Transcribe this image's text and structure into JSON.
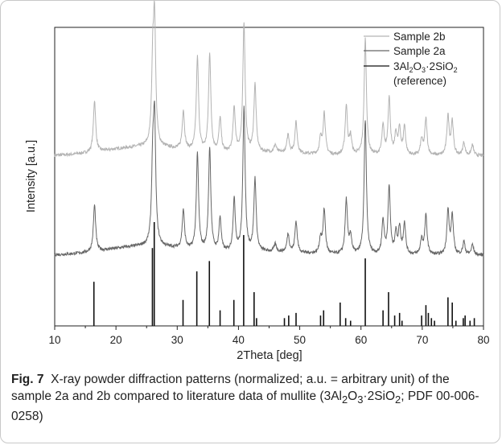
{
  "chart_data": {
    "type": "line",
    "xlabel": "2Theta [deg]",
    "ylabel": "Intensity [a.u.]",
    "xlim": [
      10,
      80
    ],
    "x_ticks": [
      10,
      20,
      30,
      40,
      50,
      60,
      70,
      80
    ],
    "x_tick_labels": [
      "10",
      "20",
      "30",
      "40",
      "50",
      "60",
      "70",
      "80"
    ],
    "y_ticks_shown": false,
    "grid": false,
    "legend_position": "top-right",
    "legend": [
      {
        "label": "Sample 2b",
        "color": "#b3b3b3"
      },
      {
        "label": "Sample 2a",
        "color": "#666666"
      },
      {
        "label": "3Al2O3·2SiO2",
        "label_line2": "(reference)",
        "color": "#111111"
      }
    ],
    "series": [
      {
        "name": "Sample 2b",
        "color": "#b3b3b3",
        "offset": 0.64,
        "baseline": 0.015,
        "peaks": [
          [
            16.5,
            0.2
          ],
          [
            26.0,
            0.28
          ],
          [
            26.3,
            0.46
          ],
          [
            31.0,
            0.15
          ],
          [
            33.3,
            0.36
          ],
          [
            35.3,
            0.38
          ],
          [
            37.0,
            0.13
          ],
          [
            39.3,
            0.17
          ],
          [
            40.9,
            0.5
          ],
          [
            42.7,
            0.26
          ],
          [
            46.0,
            0.03
          ],
          [
            48.1,
            0.07
          ],
          [
            49.4,
            0.12
          ],
          [
            53.4,
            0.06
          ],
          [
            54.0,
            0.16
          ],
          [
            57.6,
            0.19
          ],
          [
            58.3,
            0.07
          ],
          [
            60.7,
            0.45
          ],
          [
            63.6,
            0.11
          ],
          [
            64.6,
            0.22
          ],
          [
            65.7,
            0.08
          ],
          [
            66.3,
            0.1
          ],
          [
            67.1,
            0.11
          ],
          [
            69.9,
            0.06
          ],
          [
            70.6,
            0.14
          ],
          [
            74.2,
            0.15
          ],
          [
            74.9,
            0.13
          ],
          [
            76.8,
            0.05
          ],
          [
            78.2,
            0.04
          ]
        ]
      },
      {
        "name": "Sample 2a",
        "color": "#666666",
        "offset": 0.26,
        "baseline": 0.012,
        "peaks": [
          [
            16.5,
            0.18
          ],
          [
            26.0,
            0.28
          ],
          [
            26.3,
            0.46
          ],
          [
            31.0,
            0.15
          ],
          [
            33.3,
            0.37
          ],
          [
            35.3,
            0.4
          ],
          [
            37.0,
            0.13
          ],
          [
            39.3,
            0.2
          ],
          [
            40.9,
            0.56
          ],
          [
            42.7,
            0.28
          ],
          [
            46.0,
            0.03
          ],
          [
            48.1,
            0.07
          ],
          [
            49.4,
            0.12
          ],
          [
            53.4,
            0.06
          ],
          [
            54.0,
            0.17
          ],
          [
            57.6,
            0.21
          ],
          [
            58.3,
            0.07
          ],
          [
            60.7,
            0.52
          ],
          [
            63.6,
            0.13
          ],
          [
            64.6,
            0.26
          ],
          [
            65.7,
            0.08
          ],
          [
            66.3,
            0.1
          ],
          [
            67.1,
            0.12
          ],
          [
            69.9,
            0.06
          ],
          [
            70.6,
            0.15
          ],
          [
            74.2,
            0.17
          ],
          [
            74.9,
            0.15
          ],
          [
            76.8,
            0.05
          ],
          [
            78.2,
            0.04
          ]
        ]
      },
      {
        "name": "3Al2O3·2SiO2",
        "color": "#111111",
        "type": "sticks",
        "offset": 0.0,
        "peaks": [
          [
            16.4,
            0.17
          ],
          [
            25.95,
            0.3
          ],
          [
            26.25,
            0.4
          ],
          [
            30.95,
            0.1
          ],
          [
            33.2,
            0.21
          ],
          [
            35.25,
            0.25
          ],
          [
            37.0,
            0.06
          ],
          [
            39.25,
            0.1
          ],
          [
            40.85,
            0.35
          ],
          [
            42.55,
            0.13
          ],
          [
            42.95,
            0.03
          ],
          [
            47.5,
            0.03
          ],
          [
            48.2,
            0.04
          ],
          [
            49.4,
            0.05
          ],
          [
            53.4,
            0.04
          ],
          [
            53.9,
            0.06
          ],
          [
            56.6,
            0.09
          ],
          [
            57.5,
            0.03
          ],
          [
            58.3,
            0.02
          ],
          [
            60.7,
            0.26
          ],
          [
            63.6,
            0.06
          ],
          [
            64.5,
            0.13
          ],
          [
            65.5,
            0.04
          ],
          [
            66.3,
            0.05
          ],
          [
            66.7,
            0.02
          ],
          [
            69.9,
            0.04
          ],
          [
            70.6,
            0.08
          ],
          [
            71.0,
            0.05
          ],
          [
            71.5,
            0.03
          ],
          [
            72.0,
            0.02
          ],
          [
            74.2,
            0.11
          ],
          [
            74.9,
            0.09
          ],
          [
            75.5,
            0.02
          ],
          [
            76.7,
            0.03
          ],
          [
            77.0,
            0.04
          ],
          [
            77.8,
            0.02
          ],
          [
            78.5,
            0.03
          ]
        ]
      }
    ]
  },
  "caption": {
    "label": "Fig. 7",
    "text_part1": "X-ray powder diffraction patterns (normalized; a.u. = arbitrary unit) of the sample 2a and 2b compared to literature data of mullite (3Al",
    "sub1": "2",
    "text_part2": "O",
    "sub2": "3",
    "text_part3": "·2SiO",
    "sub3": "2",
    "text_part4": "; PDF 00-006-0258)"
  }
}
